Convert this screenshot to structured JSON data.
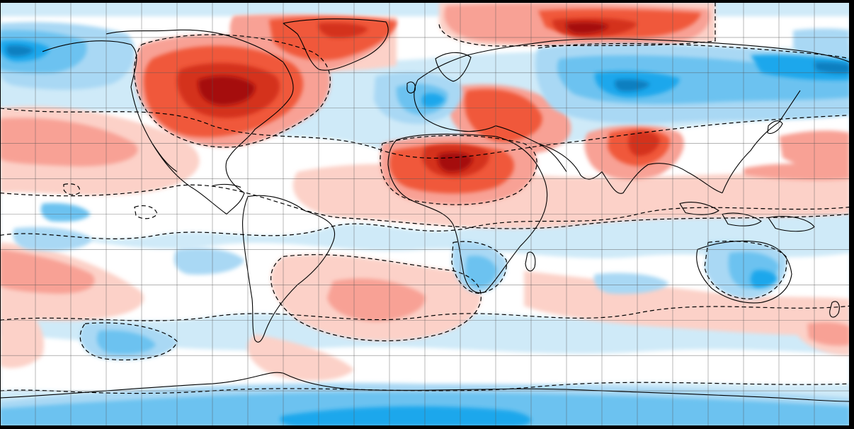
{
  "map": {
    "projection": "equirectangular",
    "grid_step_degrees": 15,
    "grid": true,
    "contour_style": "dashed",
    "palette": {
      "deep_red": "#a50f0f",
      "dark_red": "#d4321c",
      "red": "#f0583a",
      "salmon": "#f8a195",
      "light_pink": "#fcd1c8",
      "neutral": "#ffffff",
      "pale_blue": "#cfeaf8",
      "light_blue": "#a9d8f4",
      "blue": "#6cc2f0",
      "deep_blue": "#1aa7ec",
      "navy": "#0e7fc0",
      "coastline": "#000000",
      "grid_line": "#555555",
      "frame": "#000000"
    },
    "warm_regions": [
      "north-america-canada",
      "greenland",
      "arctic-siberia-coast",
      "eastern-europe-middle-east",
      "north-africa-sahara",
      "arabia",
      "tibet-china",
      "north-atlantic",
      "south-atlantic",
      "south-pacific-west"
    ],
    "cold_regions": [
      "alaska",
      "siberia-mongolia",
      "western-europe",
      "south-america",
      "southern-africa",
      "australia",
      "antarctica"
    ]
  }
}
